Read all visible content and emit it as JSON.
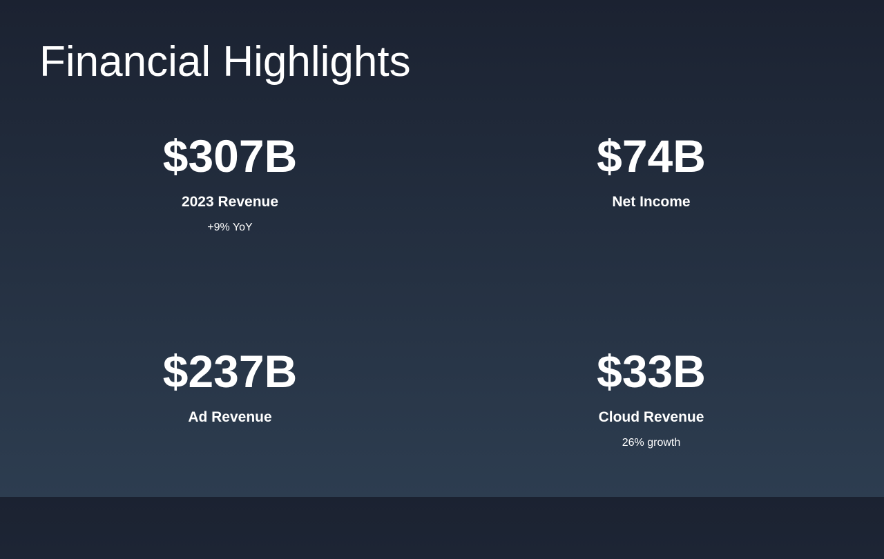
{
  "title": "Financial Highlights",
  "metrics": [
    {
      "value": "$307B",
      "label": "2023 Revenue",
      "sub": "+9% YoY"
    },
    {
      "value": "$74B",
      "label": "Net Income",
      "sub": ""
    },
    {
      "value": "$237B",
      "label": "Ad Revenue",
      "sub": ""
    },
    {
      "value": "$33B",
      "label": "Cloud Revenue",
      "sub": "26% growth"
    }
  ]
}
